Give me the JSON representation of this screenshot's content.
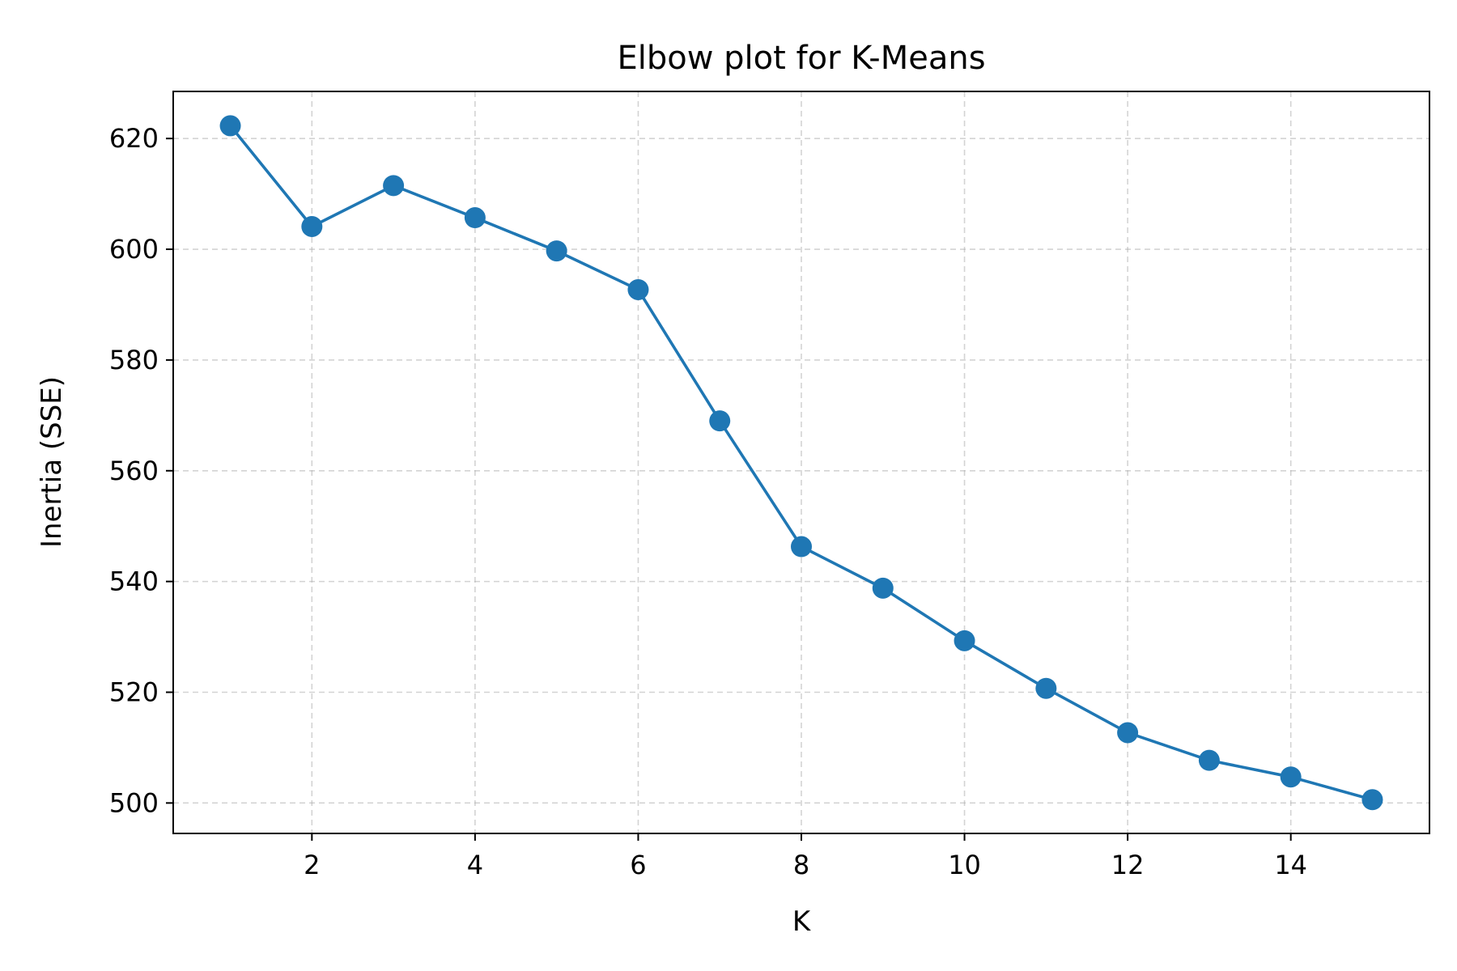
{
  "chart_data": {
    "type": "line",
    "title": "Elbow plot for K-Means",
    "xlabel": "K",
    "ylabel": "Inertia (SSE)",
    "xlim": [
      0.3,
      15.7
    ],
    "ylim": [
      494.5,
      628.5
    ],
    "xticks": [
      2,
      4,
      6,
      8,
      10,
      12,
      14
    ],
    "yticks": [
      500,
      520,
      540,
      560,
      580,
      600,
      620
    ],
    "grid": true,
    "marker": "circle",
    "color": "#1f77b4",
    "series": [
      {
        "x": [
          1,
          2,
          3,
          4,
          5,
          6,
          7,
          8,
          9,
          10,
          11,
          12,
          13,
          14,
          15
        ],
        "values": [
          622.3,
          604.1,
          611.5,
          605.7,
          599.7,
          592.7,
          569.0,
          546.3,
          538.8,
          529.3,
          520.7,
          512.7,
          507.7,
          504.7,
          500.6
        ]
      }
    ]
  }
}
